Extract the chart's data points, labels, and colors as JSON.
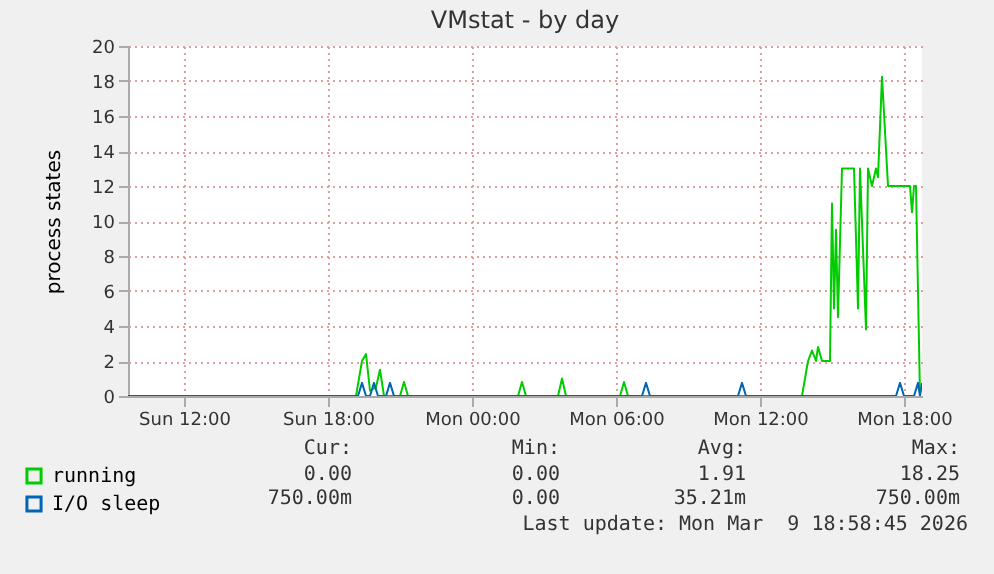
{
  "chart_data": {
    "type": "line",
    "title": "VMstat - by day",
    "ylabel": "process states",
    "xlim": [
      "2026-03-08T09:40",
      "2026-03-09T18:45"
    ],
    "xticks": [
      {
        "value": "2026-03-08T12:00",
        "label": "Sun 12:00"
      },
      {
        "value": "2026-03-08T18:00",
        "label": "Sun 18:00"
      },
      {
        "value": "2026-03-09T00:00",
        "label": "Mon 00:00"
      },
      {
        "value": "2026-03-09T06:00",
        "label": "Mon 06:00"
      },
      {
        "value": "2026-03-09T12:00",
        "label": "Mon 12:00"
      },
      {
        "value": "2026-03-09T18:00",
        "label": "Mon 18:00"
      }
    ],
    "ylim": [
      0,
      20
    ],
    "yticks": [
      0,
      2,
      4,
      6,
      8,
      10,
      12,
      14,
      16,
      18,
      20
    ],
    "grid": true,
    "legend": "bottom",
    "series": [
      {
        "name": "running",
        "color": "#00cc00",
        "x": [
          "2026-03-08T09:40",
          "2026-03-08T19:10",
          "2026-03-08T19:25",
          "2026-03-08T19:35",
          "2026-03-08T19:45",
          "2026-03-08T20:00",
          "2026-03-08T20:10",
          "2026-03-08T20:20",
          "2026-03-08T21:00",
          "2026-03-08T21:10",
          "2026-03-08T21:20",
          "2026-03-09T01:55",
          "2026-03-09T02:05",
          "2026-03-09T02:15",
          "2026-03-09T03:35",
          "2026-03-09T03:45",
          "2026-03-09T03:55",
          "2026-03-09T06:10",
          "2026-03-09T06:20",
          "2026-03-09T06:30",
          "2026-03-09T13:45",
          "2026-03-09T14:00",
          "2026-03-09T14:10",
          "2026-03-09T14:20",
          "2026-03-09T14:25",
          "2026-03-09T14:35",
          "2026-03-09T14:55",
          "2026-03-09T15:00",
          "2026-03-09T15:05",
          "2026-03-09T15:10",
          "2026-03-09T15:15",
          "2026-03-09T15:25",
          "2026-03-09T15:55",
          "2026-03-09T16:05",
          "2026-03-09T16:10",
          "2026-03-09T16:25",
          "2026-03-09T16:30",
          "2026-03-09T16:40",
          "2026-03-09T16:50",
          "2026-03-09T16:55",
          "2026-03-09T17:05",
          "2026-03-09T17:20",
          "2026-03-09T18:15",
          "2026-03-09T18:20",
          "2026-03-09T18:25",
          "2026-03-09T18:30",
          "2026-03-09T18:40"
        ],
        "values": [
          0,
          0,
          2,
          2.4,
          0.3,
          0.5,
          1.5,
          0,
          0,
          0.8,
          0,
          0,
          0.8,
          0,
          0,
          1,
          0,
          0,
          0.8,
          0,
          0,
          2,
          2.6,
          2,
          2.8,
          2,
          2,
          11,
          5,
          9.5,
          4.5,
          13,
          13,
          5,
          13,
          3.8,
          13,
          12,
          13,
          12.5,
          18.25,
          12,
          12,
          10.5,
          12,
          12,
          0
        ]
      },
      {
        "name": "I/O sleep",
        "color": "#0066b3",
        "x": [
          "2026-03-08T09:40",
          "2026-03-08T19:15",
          "2026-03-08T19:25",
          "2026-03-08T19:35",
          "2026-03-08T19:45",
          "2026-03-08T19:55",
          "2026-03-08T20:05",
          "2026-03-08T20:25",
          "2026-03-08T20:35",
          "2026-03-08T20:45",
          "2026-03-09T07:05",
          "2026-03-09T07:15",
          "2026-03-09T07:25",
          "2026-03-09T11:05",
          "2026-03-09T11:15",
          "2026-03-09T11:25",
          "2026-03-09T17:40",
          "2026-03-09T17:50",
          "2026-03-09T18:00",
          "2026-03-09T18:25",
          "2026-03-09T18:35",
          "2026-03-09T18:40",
          "2026-03-09T18:45"
        ],
        "values": [
          0,
          0,
          0.75,
          0,
          0,
          0.75,
          0,
          0,
          0.75,
          0,
          0,
          0.75,
          0,
          0,
          0.75,
          0,
          0,
          0.75,
          0,
          0,
          0.75,
          0,
          0.75
        ]
      }
    ],
    "annotations": [
      "Cur:",
      "Min:",
      "Avg:",
      "Max:",
      "0.00",
      "0.00",
      "1.91",
      "18.25",
      "750.00m",
      "0.00",
      "35.21m",
      "750.00m",
      "Last update: Mon Mar  9 18:58:45 2026"
    ]
  }
}
